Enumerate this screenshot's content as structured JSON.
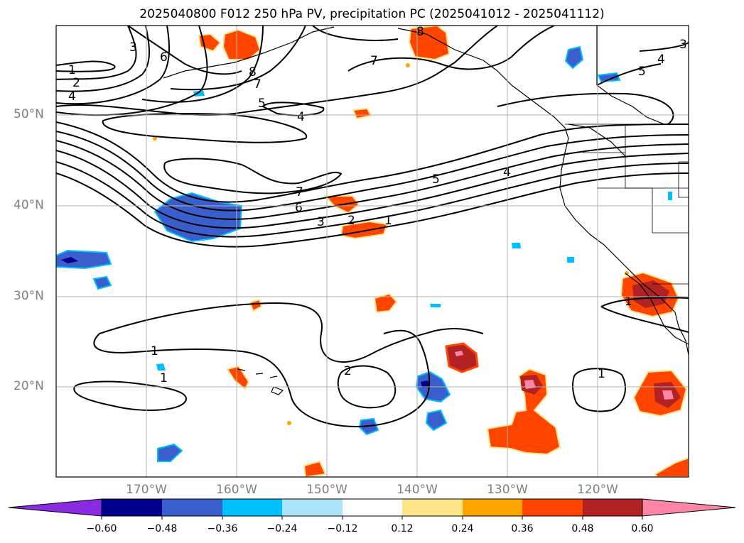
{
  "title": "2025040800 F012 250 hPa PV, precipitation PC (2025041012 - 2025041112)",
  "map": {
    "lat_labels": [
      "50°N",
      "40°N",
      "30°N",
      "20°N"
    ],
    "lon_labels": [
      "170°W",
      "160°W",
      "150°W",
      "140°W",
      "130°W",
      "120°W"
    ]
  },
  "colorbar": {
    "colors": [
      "#8a2be2",
      "#00008b",
      "#3a5fcd",
      "#00bfff",
      "#aee4fa",
      "#ffffff",
      "#fde68a",
      "#ffa500",
      "#ff4500",
      "#b22222",
      "#ff85a8"
    ],
    "tick_labels": [
      "−0.60",
      "−0.48",
      "−0.36",
      "−0.24",
      "−0.12",
      "0.12",
      "0.24",
      "0.36",
      "0.48",
      "0.60"
    ]
  },
  "contour_labels": [
    "1",
    "2",
    "3",
    "4",
    "5",
    "6",
    "7",
    "8"
  ]
}
